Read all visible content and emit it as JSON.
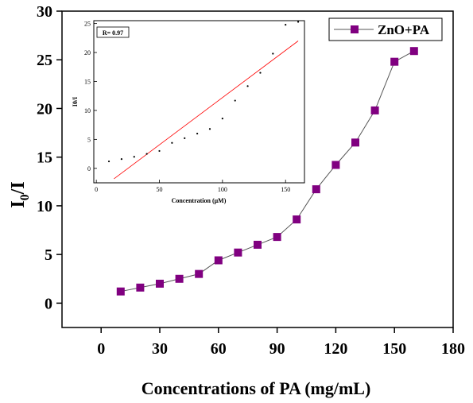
{
  "chart_data": [
    {
      "type": "line",
      "xlabel": "Concentrations of PA (mg/mL)",
      "ylabel_main": "I",
      "ylabel_sub": "0",
      "ylabel_tail": "/I",
      "xlim": [
        -20,
        180
      ],
      "ylim": [
        -2.5,
        30
      ],
      "xticks": [
        0,
        30,
        60,
        90,
        120,
        150,
        180
      ],
      "yticks": [
        0,
        5,
        10,
        15,
        20,
        25,
        30
      ],
      "grid": false,
      "legend_position": "top-right",
      "series": [
        {
          "name": "ZnO+PA",
          "color": "#800080",
          "marker": "square",
          "x": [
            10,
            20,
            30,
            40,
            50,
            60,
            70,
            80,
            90,
            100,
            110,
            120,
            130,
            140,
            150,
            160
          ],
          "y": [
            1.2,
            1.6,
            2.0,
            2.5,
            3.0,
            4.4,
            5.2,
            6.0,
            6.8,
            8.6,
            11.7,
            14.2,
            16.5,
            19.8,
            24.8,
            25.9
          ]
        }
      ]
    },
    {
      "type": "scatter",
      "annotation": "R= 0.97",
      "xlabel": "Concentration (μM)",
      "ylabel": "I0/I",
      "xlim": [
        -2,
        165
      ],
      "ylim": [
        -2.5,
        25.5
      ],
      "xticks": [
        0,
        50,
        100,
        150
      ],
      "yticks": [
        0,
        5,
        10,
        15,
        20,
        25
      ],
      "grid": false,
      "series": [
        {
          "color": "#000000",
          "marker": "dot",
          "x": [
            10,
            20,
            30,
            40,
            50,
            60,
            70,
            80,
            90,
            100,
            110,
            120,
            130,
            140,
            150,
            160
          ],
          "y": [
            1.2,
            1.6,
            2.0,
            2.5,
            3.0,
            4.4,
            5.2,
            6.0,
            6.8,
            8.6,
            11.7,
            14.2,
            16.5,
            19.8,
            24.8,
            25.9
          ]
        }
      ],
      "fit_line": {
        "color": "#ff0000",
        "x": [
          14,
          160
        ],
        "y": [
          -1.8,
          22.0
        ]
      }
    }
  ]
}
